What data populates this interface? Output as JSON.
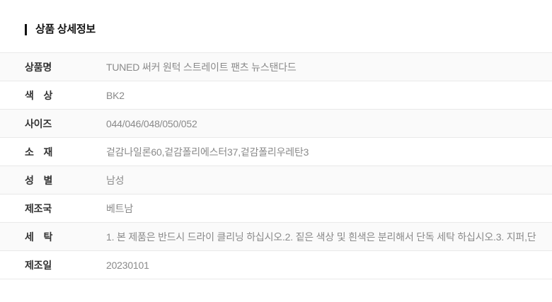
{
  "header": {
    "title": "상품 상세정보"
  },
  "table": {
    "rows": [
      {
        "label": "상품명",
        "value": "TUNED 써커 원턱 스트레이트 팬츠 뉴스탠다드"
      },
      {
        "label": "색　상",
        "value": "BK2"
      },
      {
        "label": "사이즈",
        "value": "044/046/048/050/052"
      },
      {
        "label": "소　재",
        "value": "겉감나일론60,겉감폴리에스터37,겉감폴리우레탄3"
      },
      {
        "label": "성　별",
        "value": "남성"
      },
      {
        "label": "제조국",
        "value": "베트남"
      },
      {
        "label": "세　탁",
        "value": "1. 본 제품은 반드시 드라이 클리닝 하십시오.2. 짙은 색상 및 흰색은 분리해서 단독 세탁 하십시오.3. 지퍼,단"
      },
      {
        "label": "제조일",
        "value": "20230101"
      }
    ]
  },
  "colors": {
    "title": "#111111",
    "label_text": "#333333",
    "value_text": "#8a8a8a",
    "stripe": "#fafafa",
    "border": "#e9e9e9"
  }
}
